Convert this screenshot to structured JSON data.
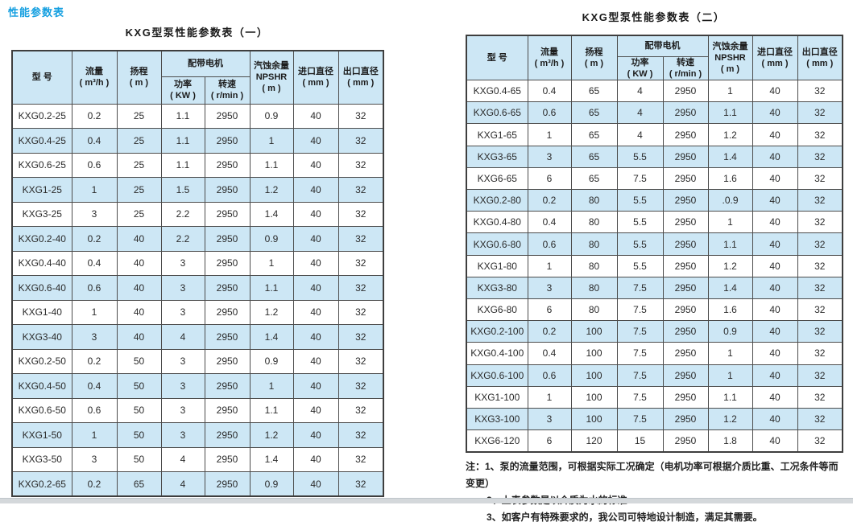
{
  "section_label": "性能参数表",
  "columns": {
    "model": "型  号",
    "flow1": "流量",
    "flow2": "( m³/h )",
    "head1": "扬程",
    "head2": "( m )",
    "motor_group": "配带电机",
    "power1": "功率",
    "power2": "( KW )",
    "speed1": "转速",
    "speed2": "( r/min )",
    "npshr1": "汽蚀余量",
    "npshr2": "NPSHR",
    "npshr3": "( m )",
    "inlet1": "进口直径",
    "inlet2": "( mm )",
    "outlet1": "出口直径",
    "outlet2": "( mm )"
  },
  "table1": {
    "title": "KXG型泵性能参数表（一）",
    "rows": [
      [
        "KXG0.2-25",
        "0.2",
        "25",
        "1.1",
        "2950",
        "0.9",
        "40",
        "32"
      ],
      [
        "KXG0.4-25",
        "0.4",
        "25",
        "1.1",
        "2950",
        "1",
        "40",
        "32"
      ],
      [
        "KXG0.6-25",
        "0.6",
        "25",
        "1.1",
        "2950",
        "1.1",
        "40",
        "32"
      ],
      [
        "KXG1-25",
        "1",
        "25",
        "1.5",
        "2950",
        "1.2",
        "40",
        "32"
      ],
      [
        "KXG3-25",
        "3",
        "25",
        "2.2",
        "2950",
        "1.4",
        "40",
        "32"
      ],
      [
        "KXG0.2-40",
        "0.2",
        "40",
        "2.2",
        "2950",
        "0.9",
        "40",
        "32"
      ],
      [
        "KXG0.4-40",
        "0.4",
        "40",
        "3",
        "2950",
        "1",
        "40",
        "32"
      ],
      [
        "KXG0.6-40",
        "0.6",
        "40",
        "3",
        "2950",
        "1.1",
        "40",
        "32"
      ],
      [
        "KXG1-40",
        "1",
        "40",
        "3",
        "2950",
        "1.2",
        "40",
        "32"
      ],
      [
        "KXG3-40",
        "3",
        "40",
        "4",
        "2950",
        "1.4",
        "40",
        "32"
      ],
      [
        "KXG0.2-50",
        "0.2",
        "50",
        "3",
        "2950",
        "0.9",
        "40",
        "32"
      ],
      [
        "KXG0.4-50",
        "0.4",
        "50",
        "3",
        "2950",
        "1",
        "40",
        "32"
      ],
      [
        "KXG0.6-50",
        "0.6",
        "50",
        "3",
        "2950",
        "1.1",
        "40",
        "32"
      ],
      [
        "KXG1-50",
        "1",
        "50",
        "3",
        "2950",
        "1.2",
        "40",
        "32"
      ],
      [
        "KXG3-50",
        "3",
        "50",
        "4",
        "2950",
        "1.4",
        "40",
        "32"
      ],
      [
        "KXG0.2-65",
        "0.2",
        "65",
        "4",
        "2950",
        "0.9",
        "40",
        "32"
      ]
    ]
  },
  "table2": {
    "title": "KXG型泵性能参数表（二）",
    "rows": [
      [
        "KXG0.4-65",
        "0.4",
        "65",
        "4",
        "2950",
        "1",
        "40",
        "32"
      ],
      [
        "KXG0.6-65",
        "0.6",
        "65",
        "4",
        "2950",
        "1.1",
        "40",
        "32"
      ],
      [
        "KXG1-65",
        "1",
        "65",
        "4",
        "2950",
        "1.2",
        "40",
        "32"
      ],
      [
        "KXG3-65",
        "3",
        "65",
        "5.5",
        "2950",
        "1.4",
        "40",
        "32"
      ],
      [
        "KXG6-65",
        "6",
        "65",
        "7.5",
        "2950",
        "1.6",
        "40",
        "32"
      ],
      [
        "KXG0.2-80",
        "0.2",
        "80",
        "5.5",
        "2950",
        ".0.9",
        "40",
        "32"
      ],
      [
        "KXG0.4-80",
        "0.4",
        "80",
        "5.5",
        "2950",
        "1",
        "40",
        "32"
      ],
      [
        "KXG0.6-80",
        "0.6",
        "80",
        "5.5",
        "2950",
        "1.1",
        "40",
        "32"
      ],
      [
        "KXG1-80",
        "1",
        "80",
        "5.5",
        "2950",
        "1.2",
        "40",
        "32"
      ],
      [
        "KXG3-80",
        "3",
        "80",
        "7.5",
        "2950",
        "1.4",
        "40",
        "32"
      ],
      [
        "KXG6-80",
        "6",
        "80",
        "7.5",
        "2950",
        "1.6",
        "40",
        "32"
      ],
      [
        "KXG0.2-100",
        "0.2",
        "100",
        "7.5",
        "2950",
        "0.9",
        "40",
        "32"
      ],
      [
        "KXG0.4-100",
        "0.4",
        "100",
        "7.5",
        "2950",
        "1",
        "40",
        "32"
      ],
      [
        "KXG0.6-100",
        "0.6",
        "100",
        "7.5",
        "2950",
        "1",
        "40",
        "32"
      ],
      [
        "KXG1-100",
        "1",
        "100",
        "7.5",
        "2950",
        "1.1",
        "40",
        "32"
      ],
      [
        "KXG3-100",
        "3",
        "100",
        "7.5",
        "2950",
        "1.2",
        "40",
        "32"
      ],
      [
        "KXG6-120",
        "6",
        "120",
        "15",
        "2950",
        "1.8",
        "40",
        "32"
      ]
    ]
  },
  "notes": {
    "lines": [
      "注：1、泵的流量范围，可根据实际工况确定（电机功率可根据介质比重、工况条件等而变更）",
      "2、上表参数是以介质为水的标准",
      "3、如客户有特殊要求的，我公司可特地设计制造，满足其需要。"
    ]
  },
  "colors": {
    "accent_blue": "#149fe0",
    "row_fill": "#cde7f5",
    "border": "#4c4c4c"
  }
}
